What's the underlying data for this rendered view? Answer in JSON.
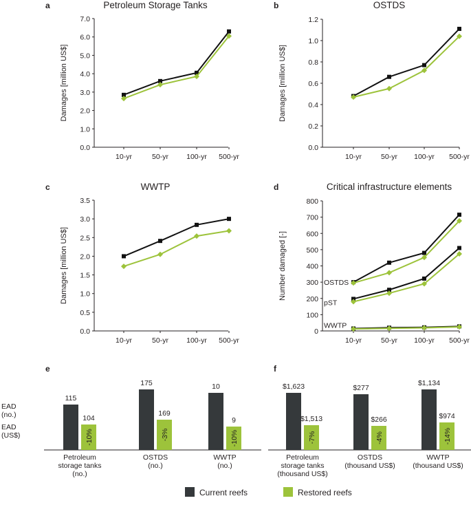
{
  "chart_data": [
    {
      "id": "a",
      "type": "line",
      "panel_label": "a",
      "title": "Petroleum Storage Tanks",
      "ylabel": "Damages [million US$]",
      "categories": [
        "10-yr",
        "50-yr",
        "100-yr",
        "500-yr"
      ],
      "ylim": [
        0,
        7
      ],
      "yticks": [
        "0.0",
        "1.0",
        "2.0",
        "3.0",
        "4.0",
        "5.0",
        "6.0",
        "7.0"
      ],
      "ytick_values": [
        0,
        1,
        2,
        3,
        4,
        5,
        6,
        7
      ],
      "series": [
        {
          "name": "Current reefs",
          "values": [
            2.85,
            3.6,
            4.05,
            6.3
          ]
        },
        {
          "name": "Restored reefs",
          "values": [
            2.65,
            3.4,
            3.85,
            6.05
          ]
        }
      ]
    },
    {
      "id": "b",
      "type": "line",
      "panel_label": "b",
      "title": "OSTDS",
      "ylabel": "Damages [million US$]",
      "categories": [
        "10-yr",
        "50-yr",
        "100-yr",
        "500-yr"
      ],
      "ylim": [
        0,
        1.2
      ],
      "yticks": [
        "0.0",
        "0.2",
        "0.4",
        "0.6",
        "0.8",
        "1.0",
        "1.2"
      ],
      "ytick_values": [
        0,
        0.2,
        0.4,
        0.6,
        0.8,
        1.0,
        1.2
      ],
      "series": [
        {
          "name": "Current reefs",
          "values": [
            0.48,
            0.66,
            0.77,
            1.11
          ]
        },
        {
          "name": "Restored reefs",
          "values": [
            0.47,
            0.55,
            0.72,
            1.04
          ]
        }
      ]
    },
    {
      "id": "c",
      "type": "line",
      "panel_label": "c",
      "title": "WWTP",
      "ylabel": "Damages [million US$]",
      "categories": [
        "10-yr",
        "50-yr",
        "100-yr",
        "500-yr"
      ],
      "ylim": [
        0,
        3.5
      ],
      "yticks": [
        "0.0",
        "0.5",
        "1.0",
        "1.5",
        "2.0",
        "2.5",
        "3.0",
        "3.5"
      ],
      "ytick_values": [
        0,
        0.5,
        1.0,
        1.5,
        2.0,
        2.5,
        3.0,
        3.5
      ],
      "series": [
        {
          "name": "Current reefs",
          "values": [
            2.0,
            2.41,
            2.84,
            3.0
          ]
        },
        {
          "name": "Restored reefs",
          "values": [
            1.73,
            2.05,
            2.54,
            2.68
          ]
        }
      ]
    },
    {
      "id": "d",
      "type": "line",
      "panel_label": "d",
      "title": "Critical infrastructure elements",
      "ylabel": "Number damaged [-]",
      "categories": [
        "10-yr",
        "50-yr",
        "100-yr",
        "500-yr"
      ],
      "ylim": [
        0,
        800
      ],
      "yticks": [
        "0",
        "100",
        "200",
        "300",
        "400",
        "500",
        "600",
        "700",
        "800"
      ],
      "ytick_values": [
        0,
        100,
        200,
        300,
        400,
        500,
        600,
        700,
        800
      ],
      "group_labels": [
        {
          "text": "OSTDS",
          "value": 300
        },
        {
          "text": "pST",
          "value": 175
        },
        {
          "text": "WWTP",
          "value": 35
        }
      ],
      "series": [
        {
          "name": "Current reefs",
          "group": "OSTDS",
          "values": [
            300,
            420,
            480,
            715
          ]
        },
        {
          "name": "Restored reefs",
          "group": "OSTDS",
          "values": [
            295,
            358,
            452,
            677
          ]
        },
        {
          "name": "Current reefs",
          "group": "pST",
          "values": [
            197,
            253,
            322,
            510
          ]
        },
        {
          "name": "Restored reefs",
          "group": "pST",
          "values": [
            180,
            232,
            290,
            474
          ]
        },
        {
          "name": "Current reefs",
          "group": "WWTP",
          "values": [
            15,
            20,
            22,
            28
          ]
        },
        {
          "name": "Restored reefs",
          "group": "WWTP",
          "values": [
            12,
            16,
            19,
            25
          ]
        }
      ]
    },
    {
      "id": "e",
      "type": "bar",
      "panel_label": "e",
      "row_labels": [
        "EAD\n(no.)",
        "EAD\n(US$)"
      ],
      "categories": [
        "Petroleum\nstorage tanks\n(no.)",
        "OSTDS\n(no.)",
        "WWTP\n(no.)"
      ],
      "series": [
        {
          "name": "Current reefs",
          "values": [
            115,
            175,
            10
          ],
          "relative_height": [
            0.66,
            0.88,
            0.83
          ],
          "labels": [
            "115",
            "175",
            "10"
          ]
        },
        {
          "name": "Restored reefs",
          "values": [
            104,
            169,
            9
          ],
          "relative_height": [
            0.37,
            0.44,
            0.34
          ],
          "labels": [
            "104",
            "169",
            "9"
          ]
        }
      ],
      "change_labels": [
        "-10%",
        "-3%",
        "-10%"
      ]
    },
    {
      "id": "f",
      "type": "bar",
      "panel_label": "f",
      "categories": [
        "Petroleum\nstorage tanks\n(thousand US$)",
        "OSTDS\n(thousand US$)",
        "WWTP\n(thousand US$)"
      ],
      "series": [
        {
          "name": "Current reefs",
          "values": [
            1623,
            277,
            1134
          ],
          "relative_height": [
            0.83,
            0.81,
            0.88
          ],
          "labels": [
            "$1,623",
            "$277",
            "$1,134"
          ]
        },
        {
          "name": "Restored reefs",
          "values": [
            1513,
            266,
            974
          ],
          "relative_height": [
            0.36,
            0.35,
            0.4
          ],
          "labels": [
            "$1,513",
            "$266",
            "$974"
          ]
        }
      ],
      "change_labels": [
        "-7%",
        "-4%",
        "-14%"
      ]
    }
  ],
  "legend": {
    "items": [
      {
        "label": "Current reefs",
        "color": "#35393b"
      },
      {
        "label": "Restored reefs",
        "color": "#9dc33b"
      }
    ]
  },
  "colors": {
    "current_line": "#111111",
    "restored_line": "#9dc33b",
    "current_bar": "#35393b",
    "restored_bar": "#9dc33b",
    "axis": "#231f20"
  }
}
